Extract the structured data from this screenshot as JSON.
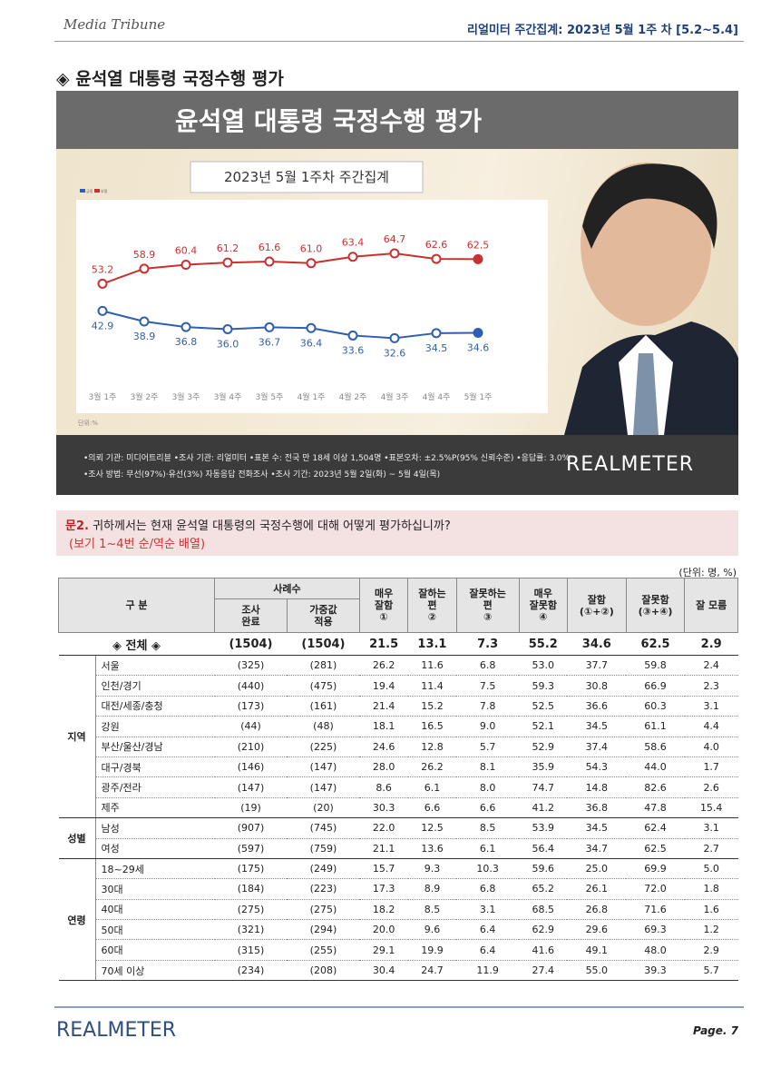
{
  "header": {
    "logo": "Media Tribune",
    "title": "리얼미터 주간집계: 2023년 5월 1주 차 [5.2~5.4]"
  },
  "section_title": "◈ 윤석열 대통령 국정수행 평가",
  "banner": {
    "title": "윤석열 대통령 국정수행 평가",
    "subtitle": "2023년 5월 1주차 주간집계"
  },
  "chart_data": {
    "type": "line",
    "unit": "단위:%",
    "categories": [
      "3월 1주",
      "3월 2주",
      "3월 3주",
      "3월 4주",
      "3월 5주",
      "4월 1주",
      "4월 2주",
      "4월 3주",
      "4월 4주",
      "5월 1주"
    ],
    "ylim": [
      20,
      75
    ],
    "series": [
      {
        "name": "긍정",
        "color": "#2f5fae",
        "values": [
          42.9,
          38.9,
          36.8,
          36.0,
          36.7,
          36.4,
          33.6,
          32.6,
          34.5,
          34.6
        ],
        "value_labels": [
          "42.9",
          "38.9",
          "36.8",
          "36.0",
          "36.7",
          "36.4",
          "33.6",
          "32.6",
          "34.5",
          "34.6"
        ]
      },
      {
        "name": "부정",
        "color": "#c8312f",
        "values": [
          53.2,
          58.9,
          60.4,
          61.2,
          61.6,
          61.0,
          63.4,
          64.7,
          62.6,
          62.5
        ],
        "value_labels": [
          "53.2",
          "58.9",
          "60.4",
          "61.2",
          "61.6",
          "61.0",
          "63.4",
          "64.7",
          "62.6",
          "62.5"
        ]
      }
    ]
  },
  "footnote": [
    "•의뢰 기관: 미디어트리뷴 •조사 기관: 리얼미터 •표본 수: 전국 만 18세 이상 1,504명 •표본오차: ±2.5%P(95% 신뢰수준) •응답률: 3.0%",
    "•조사 방법: 무선(97%)·유선(3%) 자동응답 전화조사 •조사 기간: 2023년 5월 2일(화) ~ 5월 4일(목)"
  ],
  "brand": "REALMETER",
  "question": {
    "number": "문2.",
    "text": "귀하께서는 현재 윤석열 대통령의 국정수행에 대해 어떻게 평가하십니까?",
    "note": "(보기 1~4번 순/역순 배열)"
  },
  "table": {
    "unit": "(단위: 명, %)",
    "header": {
      "category": "구 분",
      "count": "사례수",
      "count_sub": [
        "조사\n완료",
        "가중값\n적용"
      ],
      "columns": [
        "매우\n잘함\n①",
        "잘하는\n편\n②",
        "잘못하는\n편\n③",
        "매우\n잘못함\n④",
        "잘함\n(①+②)",
        "잘못함\n(③+④)",
        "잘 모름"
      ]
    },
    "total": {
      "label": "◈ 전체 ◈",
      "cells": [
        "(1504)",
        "(1504)",
        "21.5",
        "13.1",
        "7.3",
        "55.2",
        "34.6",
        "62.5",
        "2.9"
      ]
    },
    "groups": [
      {
        "name": "지역",
        "rows": [
          {
            "label": "서울",
            "cells": [
              "(325)",
              "(281)",
              "26.2",
              "11.6",
              "6.8",
              "53.0",
              "37.7",
              "59.8",
              "2.4"
            ]
          },
          {
            "label": "인천/경기",
            "cells": [
              "(440)",
              "(475)",
              "19.4",
              "11.4",
              "7.5",
              "59.3",
              "30.8",
              "66.9",
              "2.3"
            ]
          },
          {
            "label": "대전/세종/충청",
            "cells": [
              "(173)",
              "(161)",
              "21.4",
              "15.2",
              "7.8",
              "52.5",
              "36.6",
              "60.3",
              "3.1"
            ]
          },
          {
            "label": "강원",
            "cells": [
              "(44)",
              "(48)",
              "18.1",
              "16.5",
              "9.0",
              "52.1",
              "34.5",
              "61.1",
              "4.4"
            ]
          },
          {
            "label": "부산/울산/경남",
            "cells": [
              "(210)",
              "(225)",
              "24.6",
              "12.8",
              "5.7",
              "52.9",
              "37.4",
              "58.6",
              "4.0"
            ]
          },
          {
            "label": "대구/경북",
            "cells": [
              "(146)",
              "(147)",
              "28.0",
              "26.2",
              "8.1",
              "35.9",
              "54.3",
              "44.0",
              "1.7"
            ]
          },
          {
            "label": "광주/전라",
            "cells": [
              "(147)",
              "(147)",
              "8.6",
              "6.1",
              "8.0",
              "74.7",
              "14.8",
              "82.6",
              "2.6"
            ]
          },
          {
            "label": "제주",
            "cells": [
              "(19)",
              "(20)",
              "30.3",
              "6.6",
              "6.6",
              "41.2",
              "36.8",
              "47.8",
              "15.4"
            ]
          }
        ]
      },
      {
        "name": "성별",
        "rows": [
          {
            "label": "남성",
            "cells": [
              "(907)",
              "(745)",
              "22.0",
              "12.5",
              "8.5",
              "53.9",
              "34.5",
              "62.4",
              "3.1"
            ]
          },
          {
            "label": "여성",
            "cells": [
              "(597)",
              "(759)",
              "21.1",
              "13.6",
              "6.1",
              "56.4",
              "34.7",
              "62.5",
              "2.7"
            ]
          }
        ]
      },
      {
        "name": "연령",
        "rows": [
          {
            "label": "18~29세",
            "cells": [
              "(175)",
              "(249)",
              "15.7",
              "9.3",
              "10.3",
              "59.6",
              "25.0",
              "69.9",
              "5.0"
            ]
          },
          {
            "label": "30대",
            "cells": [
              "(184)",
              "(223)",
              "17.3",
              "8.9",
              "6.8",
              "65.2",
              "26.1",
              "72.0",
              "1.8"
            ]
          },
          {
            "label": "40대",
            "cells": [
              "(275)",
              "(275)",
              "18.2",
              "8.5",
              "3.1",
              "68.5",
              "26.8",
              "71.6",
              "1.6"
            ]
          },
          {
            "label": "50대",
            "cells": [
              "(321)",
              "(294)",
              "20.0",
              "9.6",
              "6.4",
              "62.9",
              "29.6",
              "69.3",
              "1.2"
            ]
          },
          {
            "label": "60대",
            "cells": [
              "(315)",
              "(255)",
              "29.1",
              "19.9",
              "6.4",
              "41.6",
              "49.1",
              "48.0",
              "2.9"
            ]
          },
          {
            "label": "70세 이상",
            "cells": [
              "(234)",
              "(208)",
              "30.4",
              "24.7",
              "11.9",
              "27.4",
              "55.0",
              "39.3",
              "5.7"
            ]
          }
        ]
      }
    ]
  },
  "footer": {
    "brand": "REALMETER",
    "page": "Page. 7"
  }
}
